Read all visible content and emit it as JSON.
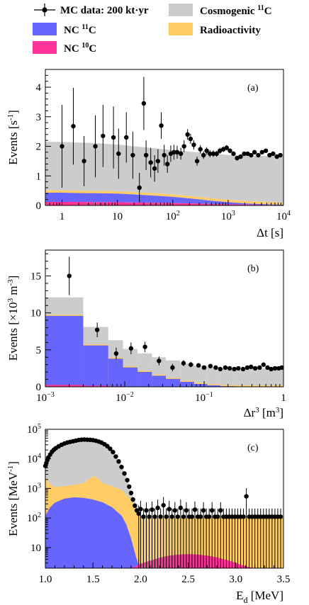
{
  "legend": {
    "mc_data": "MC data: 200 kt·yr",
    "cosmogenic": "Cosmogenic",
    "cosmogenic_sup": "11",
    "cosmogenic_iso": "C",
    "nc11": "NC",
    "nc11_sup": "11",
    "nc11_iso": "C",
    "radioactivity": "Radioactivity",
    "nc10": "NC",
    "nc10_sup": "10",
    "nc10_iso": "C"
  },
  "colors": {
    "cosmogenic": "#cccccc",
    "nc11": "#6666ff",
    "radioactivity": "#ffcc66",
    "nc10": "#ff3399",
    "data": "#000000"
  },
  "chart_data": [
    {
      "type": "scatter",
      "panel": "(a)",
      "xlabel": "Δt [s]",
      "ylabel": "Events [s⁻¹]",
      "xscale": "log",
      "xlim": [
        0.5,
        10000
      ],
      "ylim": [
        0,
        4.6
      ],
      "xticks": [
        {
          "v": 1,
          "label": "1"
        },
        {
          "v": 10,
          "label": "10"
        },
        {
          "v": 100,
          "label": "10",
          "sup": "2"
        },
        {
          "v": 1000,
          "label": "10",
          "sup": "3"
        },
        {
          "v": 10000,
          "label": "10",
          "sup": "4"
        }
      ],
      "yticks": [
        0,
        1,
        2,
        3,
        4
      ],
      "stack": {
        "x": [
          0.5,
          1,
          2,
          5,
          10,
          20,
          50,
          100,
          200,
          500,
          1000,
          2000,
          5000,
          10000
        ],
        "nc10": [
          0.12,
          0.12,
          0.12,
          0.11,
          0.11,
          0.1,
          0.09,
          0.08,
          0.07,
          0.05,
          0.04,
          0.03,
          0.02,
          0.01
        ],
        "nc11": [
          0.31,
          0.31,
          0.3,
          0.3,
          0.29,
          0.27,
          0.24,
          0.21,
          0.17,
          0.11,
          0.07,
          0.04,
          0.02,
          0.01
        ],
        "radioactivity": [
          0.08,
          0.08,
          0.08,
          0.08,
          0.08,
          0.08,
          0.08,
          0.08,
          0.08,
          0.08,
          0.08,
          0.08,
          0.08,
          0.08
        ],
        "cosmogenic": [
          1.64,
          1.64,
          1.63,
          1.61,
          1.58,
          1.55,
          1.52,
          1.5,
          1.5,
          1.52,
          1.52,
          1.54,
          1.56,
          1.57
        ]
      },
      "points": [
        {
          "x": 1.0,
          "y": 2.0,
          "err": 1.4
        },
        {
          "x": 1.6,
          "y": 2.68,
          "err": 1.3
        },
        {
          "x": 2.5,
          "y": 1.5,
          "err": 0.85
        },
        {
          "x": 4.0,
          "y": 2.0,
          "err": 1.05
        },
        {
          "x": 5.5,
          "y": 2.35,
          "err": 1.05
        },
        {
          "x": 8.5,
          "y": 2.3,
          "err": 1.05
        },
        {
          "x": 10.5,
          "y": 1.75,
          "err": 0.85
        },
        {
          "x": 14.5,
          "y": 2.3,
          "err": 0.85
        },
        {
          "x": 19,
          "y": 1.7,
          "err": 0.8
        },
        {
          "x": 25,
          "y": 0.6,
          "err": 0.5
        },
        {
          "x": 30,
          "y": 3.45,
          "err": 0.9
        },
        {
          "x": 33,
          "y": 1.7,
          "err": 0.5
        },
        {
          "x": 40,
          "y": 1.45,
          "err": 0.5
        },
        {
          "x": 47,
          "y": 1.25,
          "err": 0.45
        },
        {
          "x": 54,
          "y": 1.5,
          "err": 0.4
        },
        {
          "x": 62,
          "y": 2.7,
          "err": 0.45
        },
        {
          "x": 70,
          "y": 1.7,
          "err": 0.35
        },
        {
          "x": 80,
          "y": 1.4,
          "err": 0.3
        },
        {
          "x": 92,
          "y": 1.75,
          "err": 0.28
        },
        {
          "x": 105,
          "y": 1.8,
          "err": 0.25
        },
        {
          "x": 120,
          "y": 1.8,
          "err": 0.22
        },
        {
          "x": 140,
          "y": 1.75,
          "err": 0.2
        },
        {
          "x": 160,
          "y": 2.0,
          "err": 0.2
        },
        {
          "x": 185,
          "y": 2.4,
          "err": 0.18
        },
        {
          "x": 210,
          "y": 2.25,
          "err": 0.17
        },
        {
          "x": 240,
          "y": 2.05,
          "err": 0.16
        },
        {
          "x": 275,
          "y": 1.5,
          "err": 0.15
        },
        {
          "x": 315,
          "y": 1.9,
          "err": 0.14
        },
        {
          "x": 360,
          "y": 1.7,
          "err": 0.13
        },
        {
          "x": 410,
          "y": 1.85,
          "err": 0.12
        },
        {
          "x": 470,
          "y": 1.75,
          "err": 0.12
        },
        {
          "x": 540,
          "y": 1.75,
          "err": 0.11
        },
        {
          "x": 620,
          "y": 1.75,
          "err": 0.1
        },
        {
          "x": 710,
          "y": 1.85,
          "err": 0.1
        },
        {
          "x": 820,
          "y": 1.9,
          "err": 0.09
        },
        {
          "x": 940,
          "y": 1.95,
          "err": 0.09
        },
        {
          "x": 1080,
          "y": 1.85,
          "err": 0.08
        },
        {
          "x": 1250,
          "y": 1.75,
          "err": 0.08
        },
        {
          "x": 1450,
          "y": 1.6,
          "err": 0.07
        },
        {
          "x": 1680,
          "y": 1.65,
          "err": 0.07
        },
        {
          "x": 1950,
          "y": 1.75,
          "err": 0.07
        },
        {
          "x": 2250,
          "y": 1.75,
          "err": 0.06
        },
        {
          "x": 2600,
          "y": 1.7,
          "err": 0.06
        },
        {
          "x": 3000,
          "y": 1.8,
          "err": 0.06
        },
        {
          "x": 3500,
          "y": 1.7,
          "err": 0.05
        },
        {
          "x": 4100,
          "y": 1.8,
          "err": 0.05
        },
        {
          "x": 4800,
          "y": 1.85,
          "err": 0.05
        },
        {
          "x": 5600,
          "y": 1.7,
          "err": 0.05
        },
        {
          "x": 6500,
          "y": 1.75,
          "err": 0.05
        },
        {
          "x": 7600,
          "y": 1.65,
          "err": 0.04
        },
        {
          "x": 8800,
          "y": 1.7,
          "err": 0.04
        }
      ]
    },
    {
      "type": "bar",
      "panel": "(b)",
      "xlabel": "Δr³ [m³]",
      "ylabel": "Events [×10³ m⁻³]",
      "xscale": "log",
      "xlim": [
        0.001,
        1
      ],
      "ylim": [
        0,
        18.5
      ],
      "xticks": [
        {
          "v": 0.001,
          "label": "10",
          "sup": "−3"
        },
        {
          "v": 0.01,
          "label": "10",
          "sup": "−2"
        },
        {
          "v": 0.1,
          "label": "10",
          "sup": "−1"
        },
        {
          "v": 1,
          "label": "1"
        }
      ],
      "yticks": [
        0,
        5,
        10,
        15
      ],
      "edges": [
        0.001,
        0.003,
        0.0062,
        0.0095,
        0.0145,
        0.022,
        0.033,
        0.05,
        0.075,
        0.11,
        0.16,
        0.24,
        1.0
      ],
      "stack": {
        "nc10": [
          0.25,
          0.15,
          0.08,
          0.05,
          0.03,
          0.02,
          0.01,
          0.0,
          0.0,
          0.0,
          0.0,
          0.0
        ],
        "nc11": [
          9.35,
          5.45,
          3.72,
          2.57,
          1.99,
          1.48,
          1.06,
          0.67,
          0.38,
          0.2,
          0.08,
          0.03
        ],
        "radioactivity": [
          0.15,
          0.15,
          0.15,
          0.15,
          0.15,
          0.15,
          0.15,
          0.15,
          0.15,
          0.15,
          0.15,
          0.15
        ],
        "cosmogenic": [
          2.35,
          2.35,
          2.35,
          2.35,
          2.35,
          2.35,
          2.35,
          2.35,
          2.35,
          2.3,
          2.3,
          2.3
        ]
      },
      "points": [
        {
          "x": 0.002,
          "y": 15.0,
          "err": 2.6
        },
        {
          "x": 0.0045,
          "y": 7.7,
          "err": 1.0
        },
        {
          "x": 0.0078,
          "y": 4.5,
          "err": 0.8
        },
        {
          "x": 0.012,
          "y": 5.2,
          "err": 0.8
        },
        {
          "x": 0.018,
          "y": 5.4,
          "err": 0.7
        },
        {
          "x": 0.027,
          "y": 3.5,
          "err": 0.6
        },
        {
          "x": 0.04,
          "y": 2.6,
          "err": 0.5
        },
        {
          "x": 0.055,
          "y": 3.2,
          "err": 0.4
        },
        {
          "x": 0.068,
          "y": 3.0,
          "err": 0.35
        },
        {
          "x": 0.085,
          "y": 2.9,
          "err": 0.3
        },
        {
          "x": 0.1,
          "y": 2.6,
          "err": 0.3
        },
        {
          "x": 0.12,
          "y": 2.8,
          "err": 0.28
        },
        {
          "x": 0.14,
          "y": 2.6,
          "err": 0.25
        },
        {
          "x": 0.16,
          "y": 2.4,
          "err": 0.25
        },
        {
          "x": 0.185,
          "y": 2.6,
          "err": 0.22
        },
        {
          "x": 0.21,
          "y": 2.5,
          "err": 0.2
        },
        {
          "x": 0.24,
          "y": 2.4,
          "err": 0.2
        },
        {
          "x": 0.27,
          "y": 2.5,
          "err": 0.2
        },
        {
          "x": 0.31,
          "y": 2.4,
          "err": 0.18
        },
        {
          "x": 0.35,
          "y": 2.6,
          "err": 0.18
        },
        {
          "x": 0.39,
          "y": 2.7,
          "err": 0.18
        },
        {
          "x": 0.44,
          "y": 2.5,
          "err": 0.17
        },
        {
          "x": 0.5,
          "y": 2.6,
          "err": 0.17
        },
        {
          "x": 0.56,
          "y": 3.0,
          "err": 0.17
        },
        {
          "x": 0.63,
          "y": 2.6,
          "err": 0.16
        },
        {
          "x": 0.7,
          "y": 2.4,
          "err": 0.16
        },
        {
          "x": 0.78,
          "y": 2.5,
          "err": 0.16
        },
        {
          "x": 0.87,
          "y": 2.5,
          "err": 0.15
        },
        {
          "x": 0.95,
          "y": 2.6,
          "err": 0.15
        }
      ]
    },
    {
      "type": "area",
      "panel": "(c)",
      "xlabel": "E_d [MeV]",
      "ylabel": "Events [MeV⁻¹]",
      "xscale": "linear",
      "yscale": "log",
      "xlim": [
        1.0,
        3.5
      ],
      "ylim": [
        2,
        100000
      ],
      "xticks": [
        {
          "v": 1.0,
          "label": "1.0"
        },
        {
          "v": 1.5,
          "label": "1.5"
        },
        {
          "v": 2.0,
          "label": "2.0"
        },
        {
          "v": 2.5,
          "label": "2.5"
        },
        {
          "v": 3.0,
          "label": "3.0"
        },
        {
          "v": 3.5,
          "label": "3.5"
        }
      ],
      "yticks": [
        {
          "v": 10,
          "label": "10"
        },
        {
          "v": 100,
          "label": "10",
          "sup": "2"
        },
        {
          "v": 1000,
          "label": "10",
          "sup": "3"
        },
        {
          "v": 10000,
          "label": "10",
          "sup": "4"
        },
        {
          "v": 100000,
          "label": "10",
          "sup": "5"
        }
      ],
      "curves": {
        "nc11_x": [
          1.0,
          1.05,
          1.1,
          1.2,
          1.3,
          1.4,
          1.5,
          1.6,
          1.7,
          1.8,
          1.85,
          1.9,
          1.95,
          1.99
        ],
        "nc11_y": [
          120,
          230,
          330,
          450,
          500,
          480,
          420,
          340,
          230,
          120,
          60,
          20,
          5,
          2
        ],
        "radio_x": [
          1.0,
          1.05,
          1.1,
          1.2,
          1.3,
          1.4,
          1.5,
          1.55,
          1.6,
          1.7,
          1.8,
          1.9,
          1.95,
          2.0,
          3.5
        ],
        "radio_y": [
          2500,
          1400,
          1100,
          1200,
          1300,
          1500,
          2600,
          2200,
          1500,
          1200,
          900,
          400,
          200,
          100,
          100
        ],
        "total_x": [
          1.0,
          1.02,
          1.05,
          1.1,
          1.15,
          1.2,
          1.3,
          1.4,
          1.5,
          1.6,
          1.7,
          1.8,
          1.85,
          1.9,
          1.95,
          2.0,
          2.05
        ],
        "total_y": [
          6000,
          9000,
          14000,
          22000,
          28000,
          33000,
          40000,
          45000,
          43000,
          35000,
          20000,
          6000,
          2500,
          800,
          300,
          120,
          100
        ],
        "nc10_x": [
          1.9,
          2.0,
          2.1,
          2.2,
          2.3,
          2.4,
          2.5,
          2.6,
          2.7,
          2.8,
          2.9,
          3.0,
          3.1,
          3.2
        ],
        "nc10_y": [
          2,
          2.8,
          3.6,
          4.5,
          5.3,
          5.8,
          6.0,
          5.8,
          5.3,
          4.6,
          3.8,
          3.0,
          2.3,
          2
        ]
      },
      "points": [
        {
          "x": 1.0,
          "y": 5800
        },
        {
          "x": 1.01,
          "y": 7200
        },
        {
          "x": 1.02,
          "y": 9000
        },
        {
          "x": 1.03,
          "y": 11000
        },
        {
          "x": 1.05,
          "y": 14000
        },
        {
          "x": 1.07,
          "y": 17500
        },
        {
          "x": 1.09,
          "y": 20500
        },
        {
          "x": 1.11,
          "y": 23000
        },
        {
          "x": 1.14,
          "y": 26500
        },
        {
          "x": 1.17,
          "y": 30000
        },
        {
          "x": 1.2,
          "y": 33000
        },
        {
          "x": 1.23,
          "y": 35500
        },
        {
          "x": 1.26,
          "y": 37500
        },
        {
          "x": 1.29,
          "y": 39500
        },
        {
          "x": 1.32,
          "y": 41500
        },
        {
          "x": 1.35,
          "y": 43500
        },
        {
          "x": 1.38,
          "y": 44500
        },
        {
          "x": 1.41,
          "y": 45000
        },
        {
          "x": 1.44,
          "y": 44500
        },
        {
          "x": 1.47,
          "y": 44000
        },
        {
          "x": 1.5,
          "y": 43000
        },
        {
          "x": 1.53,
          "y": 41000
        },
        {
          "x": 1.56,
          "y": 38500
        },
        {
          "x": 1.59,
          "y": 35500
        },
        {
          "x": 1.62,
          "y": 31500
        },
        {
          "x": 1.65,
          "y": 27000
        },
        {
          "x": 1.68,
          "y": 22000
        },
        {
          "x": 1.71,
          "y": 17000
        },
        {
          "x": 1.74,
          "y": 12000
        },
        {
          "x": 1.77,
          "y": 8200
        },
        {
          "x": 1.8,
          "y": 5300
        },
        {
          "x": 1.83,
          "y": 3200
        },
        {
          "x": 1.86,
          "y": 1900
        },
        {
          "x": 1.88,
          "y": 1150
        },
        {
          "x": 1.9,
          "y": 700
        },
        {
          "x": 1.92,
          "y": 420
        },
        {
          "x": 1.94,
          "y": 260
        },
        {
          "x": 1.96,
          "y": 180
        },
        {
          "x": 1.98,
          "y": 140
        },
        {
          "x": 2.0,
          "y": 200
        },
        {
          "x": 2.03,
          "y": 110
        },
        {
          "x": 2.06,
          "y": 180
        },
        {
          "x": 2.09,
          "y": 110
        },
        {
          "x": 2.12,
          "y": 190
        },
        {
          "x": 2.15,
          "y": 110
        },
        {
          "x": 2.18,
          "y": 220
        },
        {
          "x": 2.21,
          "y": 110
        },
        {
          "x": 2.24,
          "y": 270
        },
        {
          "x": 2.27,
          "y": 110
        },
        {
          "x": 2.3,
          "y": 200
        },
        {
          "x": 2.33,
          "y": 110
        },
        {
          "x": 2.36,
          "y": 180
        },
        {
          "x": 2.39,
          "y": 110
        },
        {
          "x": 2.42,
          "y": 220
        },
        {
          "x": 2.45,
          "y": 110
        },
        {
          "x": 2.48,
          "y": 180
        },
        {
          "x": 2.51,
          "y": 110
        },
        {
          "x": 2.54,
          "y": 110
        },
        {
          "x": 2.57,
          "y": 190
        },
        {
          "x": 2.6,
          "y": 110
        },
        {
          "x": 2.63,
          "y": 110
        },
        {
          "x": 2.66,
          "y": 180
        },
        {
          "x": 2.69,
          "y": 110
        },
        {
          "x": 2.72,
          "y": 110
        },
        {
          "x": 2.75,
          "y": 180
        },
        {
          "x": 2.78,
          "y": 110
        },
        {
          "x": 2.81,
          "y": 110
        },
        {
          "x": 2.84,
          "y": 180
        },
        {
          "x": 2.87,
          "y": 110
        },
        {
          "x": 2.9,
          "y": 110
        },
        {
          "x": 2.93,
          "y": 110
        },
        {
          "x": 2.96,
          "y": 110
        },
        {
          "x": 2.99,
          "y": 110
        },
        {
          "x": 3.02,
          "y": 110
        },
        {
          "x": 3.05,
          "y": 110
        },
        {
          "x": 3.08,
          "y": 110
        },
        {
          "x": 3.11,
          "y": 540
        },
        {
          "x": 3.14,
          "y": 110
        },
        {
          "x": 3.17,
          "y": 110
        },
        {
          "x": 3.2,
          "y": 110
        },
        {
          "x": 3.23,
          "y": 110
        },
        {
          "x": 3.26,
          "y": 110
        },
        {
          "x": 3.29,
          "y": 110
        },
        {
          "x": 3.32,
          "y": 110
        },
        {
          "x": 3.35,
          "y": 110
        },
        {
          "x": 3.38,
          "y": 110
        },
        {
          "x": 3.41,
          "y": 110
        },
        {
          "x": 3.44,
          "y": 110
        },
        {
          "x": 3.47,
          "y": 110
        }
      ]
    }
  ]
}
